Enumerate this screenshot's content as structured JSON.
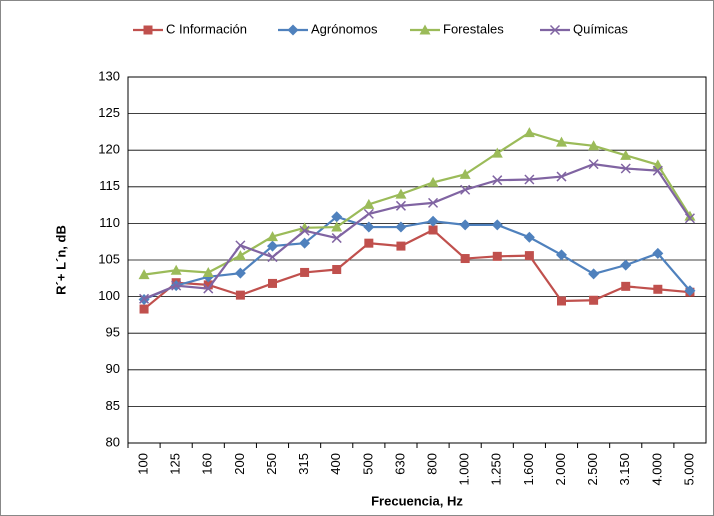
{
  "chart_data": {
    "type": "line",
    "x_label": "Frecuencia, Hz",
    "y_label": "R´+ L´n, dB",
    "categories": [
      "100",
      "125",
      "160",
      "200",
      "250",
      "315",
      "400",
      "500",
      "630",
      "800",
      "1.000",
      "1.250",
      "1.600",
      "2.000",
      "2.500",
      "3.150",
      "4.000",
      "5.000"
    ],
    "series": [
      {
        "name": "C Información",
        "color": "#c0504d",
        "marker": "square",
        "values": [
          98.3,
          101.9,
          101.6,
          100.2,
          101.8,
          103.3,
          103.7,
          107.3,
          106.9,
          109.1,
          105.2,
          105.5,
          105.6,
          99.4,
          99.5,
          101.4,
          101.0,
          100.6
        ]
      },
      {
        "name": "Agrónomos",
        "color": "#4f81bd",
        "marker": "diamond",
        "values": [
          99.6,
          101.5,
          102.7,
          103.2,
          106.9,
          107.3,
          110.9,
          109.5,
          109.5,
          110.3,
          109.8,
          109.8,
          108.1,
          105.7,
          103.1,
          104.3,
          105.9,
          100.8
        ]
      },
      {
        "name": "Forestales",
        "color": "#9bbb59",
        "marker": "triangle",
        "values": [
          103.0,
          103.6,
          103.3,
          105.6,
          108.2,
          109.4,
          109.5,
          112.6,
          114.0,
          115.6,
          116.7,
          119.6,
          122.4,
          121.1,
          120.6,
          119.3,
          118.0,
          111.0
        ]
      },
      {
        "name": "Químicas",
        "color": "#8064a2",
        "marker": "x",
        "values": [
          99.7,
          101.5,
          101.1,
          107.0,
          105.4,
          109.0,
          108.0,
          111.3,
          112.4,
          112.8,
          114.6,
          115.9,
          116.0,
          116.4,
          118.1,
          117.5,
          117.2,
          110.7
        ]
      }
    ],
    "ylim": [
      80,
      130
    ],
    "yticks": [
      80,
      85,
      90,
      95,
      100,
      105,
      110,
      115,
      120,
      125,
      130
    ],
    "grid": true,
    "legend": "top"
  }
}
